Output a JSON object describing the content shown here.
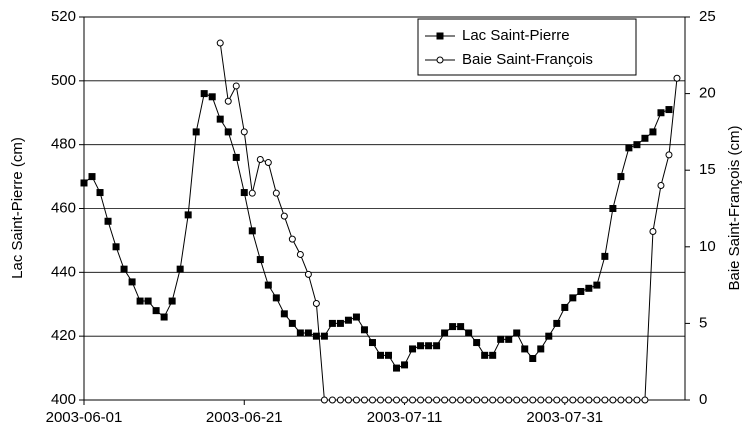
{
  "chart_data": {
    "type": "line",
    "ylabel": "Lac Saint-Pierre (cm)",
    "y2label": "Baie Saint-François (cm)",
    "xlim": [
      "2003-06-01",
      "2003-08-15"
    ],
    "xticks": [
      "2003-06-01",
      "2003-06-21",
      "2003-07-11",
      "2003-07-31"
    ],
    "ylim": [
      400,
      520
    ],
    "yticks": [
      400,
      420,
      440,
      460,
      480,
      500,
      520
    ],
    "y2lim": [
      0,
      25
    ],
    "y2ticks": [
      0,
      5,
      10,
      15,
      20,
      25
    ],
    "grid": true,
    "legend": "upper right",
    "series": [
      {
        "name": "Lac Saint-Pierre",
        "color": "#000000",
        "marker": "square",
        "x": [
          "2003-06-01",
          "2003-06-02",
          "2003-06-03",
          "2003-06-04",
          "2003-06-05",
          "2003-06-06",
          "2003-06-07",
          "2003-06-08",
          "2003-06-09",
          "2003-06-10",
          "2003-06-11",
          "2003-06-12",
          "2003-06-13",
          "2003-06-14",
          "2003-06-15",
          "2003-06-16",
          "2003-06-17",
          "2003-06-18",
          "2003-06-19",
          "2003-06-20",
          "2003-06-21",
          "2003-06-22",
          "2003-06-23",
          "2003-06-24",
          "2003-06-25",
          "2003-06-26",
          "2003-06-27",
          "2003-06-28",
          "2003-06-29",
          "2003-06-30",
          "2003-07-01",
          "2003-07-02",
          "2003-07-03",
          "2003-07-04",
          "2003-07-05",
          "2003-07-06",
          "2003-07-07",
          "2003-07-08",
          "2003-07-09",
          "2003-07-10",
          "2003-07-11",
          "2003-07-12",
          "2003-07-13",
          "2003-07-14",
          "2003-07-15",
          "2003-07-16",
          "2003-07-17",
          "2003-07-18",
          "2003-07-19",
          "2003-07-20",
          "2003-07-21",
          "2003-07-22",
          "2003-07-23",
          "2003-07-24",
          "2003-07-25",
          "2003-07-26",
          "2003-07-27",
          "2003-07-28",
          "2003-07-29",
          "2003-07-30",
          "2003-07-31",
          "2003-08-01",
          "2003-08-02",
          "2003-08-03",
          "2003-08-04",
          "2003-08-05",
          "2003-08-06",
          "2003-08-07",
          "2003-08-08",
          "2003-08-09",
          "2003-08-10",
          "2003-08-11",
          "2003-08-12",
          "2003-08-13"
        ],
        "values": [
          468,
          470,
          465,
          456,
          448,
          441,
          437,
          431,
          431,
          428,
          426,
          431,
          441,
          458,
          484,
          496,
          495,
          488,
          484,
          476,
          465,
          453,
          444,
          436,
          432,
          427,
          424,
          421,
          421,
          420,
          420,
          424,
          424,
          425,
          426,
          422,
          418,
          414,
          414,
          410,
          411,
          416,
          417,
          417,
          417,
          421,
          423,
          423,
          421,
          418,
          414,
          414,
          419,
          419,
          421,
          416,
          413,
          416,
          420,
          424,
          429,
          432,
          434,
          435,
          436,
          445,
          460,
          470,
          479,
          480,
          482,
          484,
          490,
          491
        ]
      },
      {
        "name": "Baie Saint-François",
        "color": "#000000",
        "marker": "circle",
        "axis": "y2",
        "x": [
          "2003-06-18",
          "2003-06-19",
          "2003-06-20",
          "2003-06-21",
          "2003-06-22",
          "2003-06-23",
          "2003-06-24",
          "2003-06-25",
          "2003-06-26",
          "2003-06-27",
          "2003-06-28",
          "2003-06-29",
          "2003-06-30",
          "2003-07-01",
          "2003-07-02",
          "2003-07-03",
          "2003-07-04",
          "2003-07-05",
          "2003-07-06",
          "2003-07-07",
          "2003-07-08",
          "2003-07-09",
          "2003-07-10",
          "2003-07-11",
          "2003-07-12",
          "2003-07-13",
          "2003-07-14",
          "2003-07-15",
          "2003-07-16",
          "2003-07-17",
          "2003-07-18",
          "2003-07-19",
          "2003-07-20",
          "2003-07-21",
          "2003-07-22",
          "2003-07-23",
          "2003-07-24",
          "2003-07-25",
          "2003-07-26",
          "2003-07-27",
          "2003-07-28",
          "2003-07-29",
          "2003-07-30",
          "2003-07-31",
          "2003-08-01",
          "2003-08-02",
          "2003-08-03",
          "2003-08-04",
          "2003-08-05",
          "2003-08-06",
          "2003-08-07",
          "2003-08-08",
          "2003-08-09",
          "2003-08-10",
          "2003-08-11",
          "2003-08-12",
          "2003-08-13",
          "2003-08-14"
        ],
        "values": [
          23.3,
          19.5,
          20.5,
          17.5,
          13.5,
          15.7,
          15.5,
          13.5,
          12,
          10.5,
          9.5,
          8.2,
          6.3,
          0,
          0,
          0,
          0,
          0,
          0,
          0,
          0,
          0,
          0,
          0,
          0,
          0,
          0,
          0,
          0,
          0,
          0,
          0,
          0,
          0,
          0,
          0,
          0,
          0,
          0,
          0,
          0,
          0,
          0,
          0,
          0,
          0,
          0,
          0,
          0,
          0,
          0,
          0,
          0,
          0,
          11,
          14,
          16,
          21
        ]
      }
    ]
  }
}
